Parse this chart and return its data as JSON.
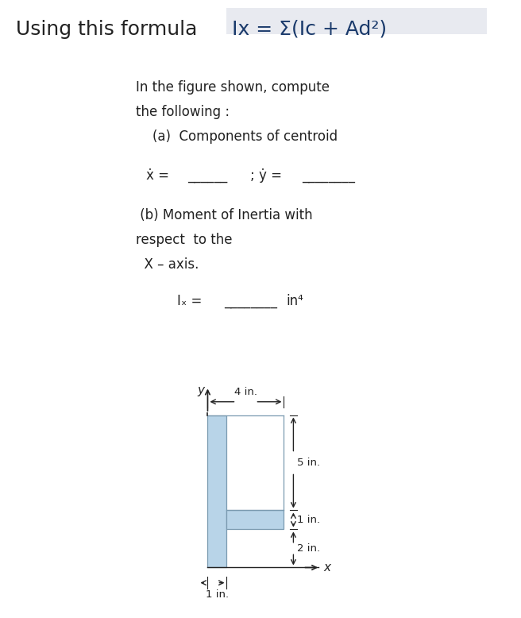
{
  "title_text": "Using this formula",
  "formula_text": "Ix = Σ(Ic + Ad²)",
  "formula_highlight": "#e8eaf0",
  "formula_color": "#1a3a6b",
  "body_lines": [
    "In the figure shown, compute",
    "the following :",
    "    (a)  Components of centroid"
  ],
  "xbar_label": "ẋ =",
  "ybar_label": "; ẏ =",
  "part_b_lines": [
    " (b) Moment of Inertia with",
    "respect  to the",
    "  X – axis."
  ],
  "ix_label": "Iₓ =",
  "ix_unit": "in⁴",
  "shape_color": "#b8d4e8",
  "shape_edge": "#7a9ab0",
  "dim_color": "#222222",
  "bg_color": "#ffffff",
  "text_color": "#222222",
  "title_fontsize": 18,
  "formula_fontsize": 18,
  "body_fontsize": 12,
  "label_fontsize": 12
}
